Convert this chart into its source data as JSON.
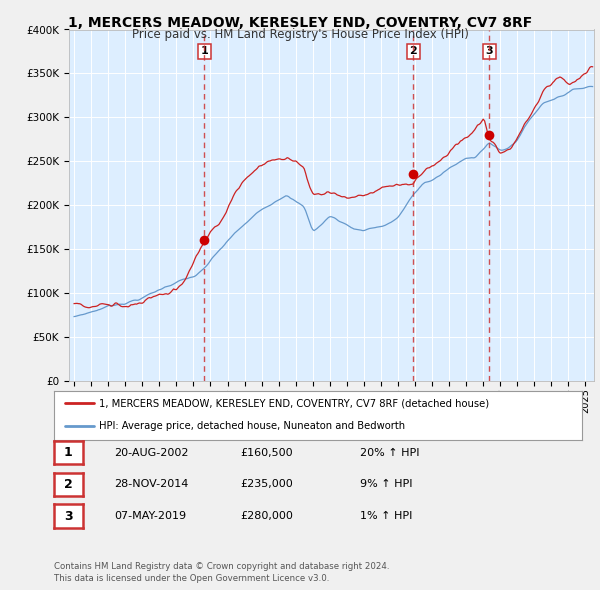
{
  "title": "1, MERCERS MEADOW, KERESLEY END, COVENTRY, CV7 8RF",
  "subtitle": "Price paid vs. HM Land Registry's House Price Index (HPI)",
  "background_color": "#f0f0f0",
  "plot_bg_color": "#ddeeff",
  "grid_color": "#ffffff",
  "hpi_color": "#6699cc",
  "price_color": "#cc2222",
  "sale_marker_color": "#cc0000",
  "dashed_line_color": "#cc3333",
  "ylim": [
    0,
    400000
  ],
  "yticks": [
    0,
    50000,
    100000,
    150000,
    200000,
    250000,
    300000,
    350000,
    400000
  ],
  "ytick_labels": [
    "£0",
    "£50K",
    "£100K",
    "£150K",
    "£200K",
    "£250K",
    "£300K",
    "£350K",
    "£400K"
  ],
  "xlim_start": 1994.7,
  "xlim_end": 2025.5,
  "xticks": [
    1995,
    1996,
    1997,
    1998,
    1999,
    2000,
    2001,
    2002,
    2003,
    2004,
    2005,
    2006,
    2007,
    2008,
    2009,
    2010,
    2011,
    2012,
    2013,
    2014,
    2015,
    2016,
    2017,
    2018,
    2019,
    2020,
    2021,
    2022,
    2023,
    2024,
    2025
  ],
  "sale_dates": [
    2002.635,
    2014.91,
    2019.356
  ],
  "sale_prices": [
    160500,
    235000,
    280000
  ],
  "sale_labels": [
    "1",
    "2",
    "3"
  ],
  "sale_info": [
    {
      "num": "1",
      "date": "20-AUG-2002",
      "price": "£160,500",
      "hpi": "20% ↑ HPI"
    },
    {
      "num": "2",
      "date": "28-NOV-2014",
      "price": "£235,000",
      "hpi": "9% ↑ HPI"
    },
    {
      "num": "3",
      "date": "07-MAY-2019",
      "price": "£280,000",
      "hpi": "1% ↑ HPI"
    }
  ],
  "legend_line1": "1, MERCERS MEADOW, KERESLEY END, COVENTRY, CV7 8RF (detached house)",
  "legend_line2": "HPI: Average price, detached house, Nuneaton and Bedworth",
  "footer1": "Contains HM Land Registry data © Crown copyright and database right 2024.",
  "footer2": "This data is licensed under the Open Government Licence v3.0."
}
